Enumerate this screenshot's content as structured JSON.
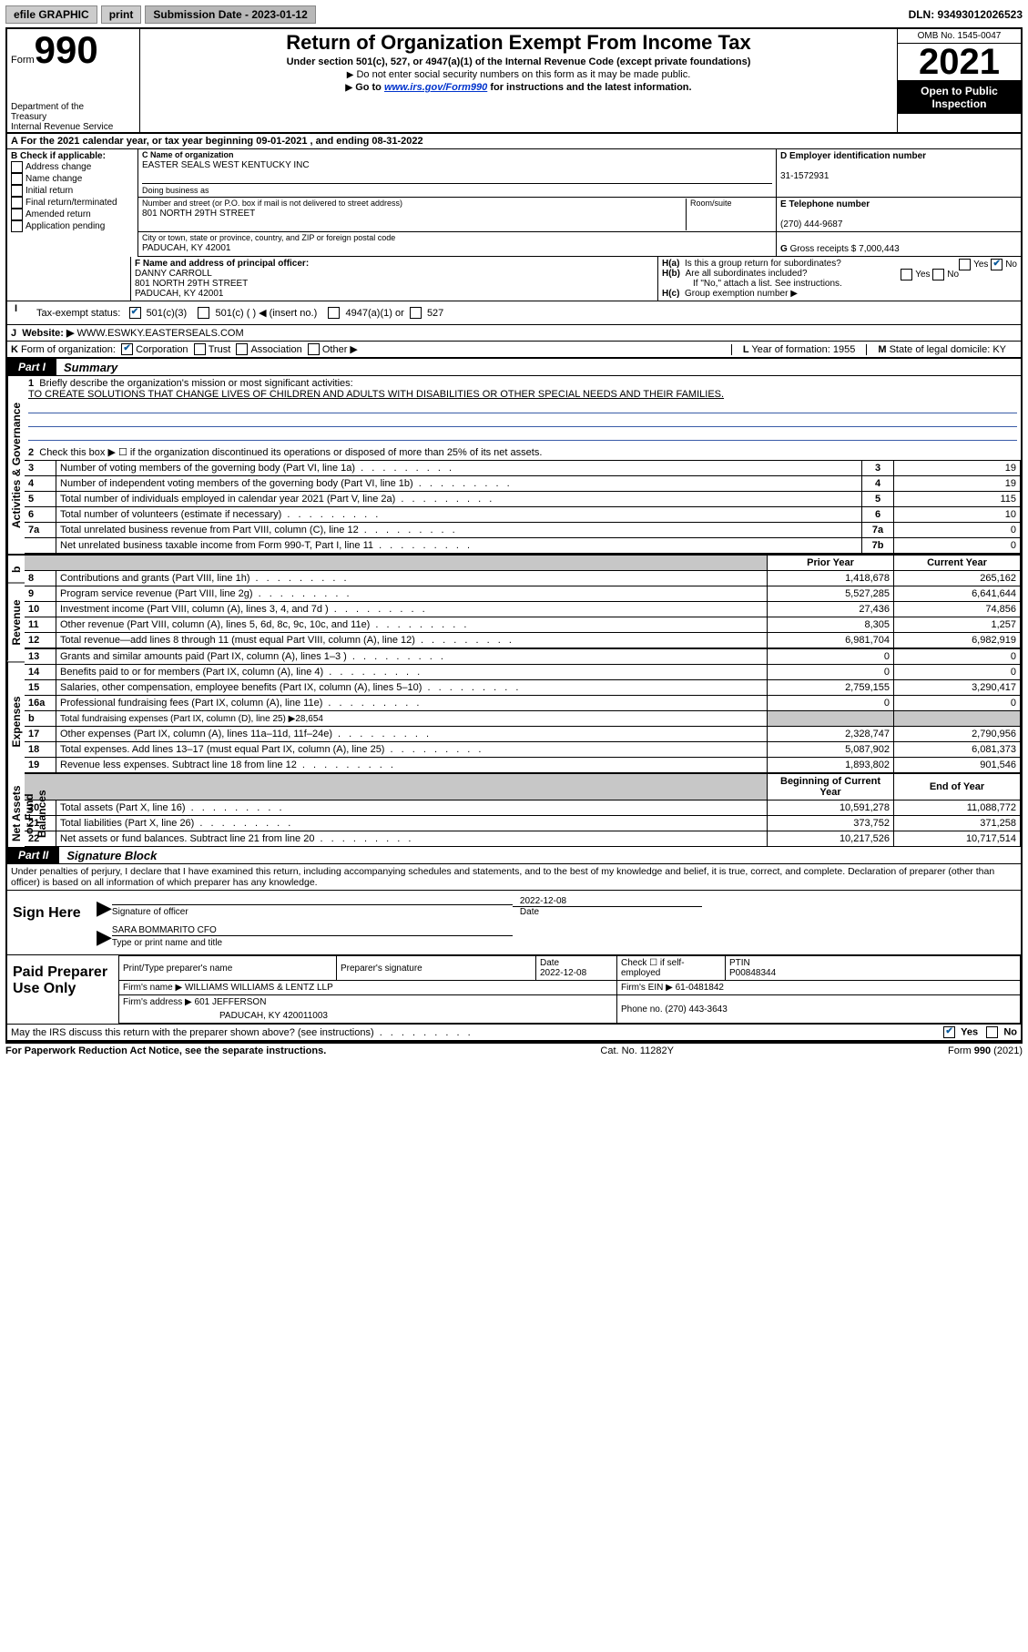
{
  "topbar": {
    "efile": "efile GRAPHIC",
    "print": "print",
    "submission_label": "Submission Date - 2023-01-12",
    "dln": "DLN: 93493012026523"
  },
  "header": {
    "form_prefix": "Form",
    "form_number": "990",
    "dept": "Department of the Treasury\nInternal Revenue Service",
    "title": "Return of Organization Exempt From Income Tax",
    "subtitle": "Under section 501(c), 527, or 4947(a)(1) of the Internal Revenue Code (except private foundations)",
    "note1": "Do not enter social security numbers on this form as it may be made public.",
    "note2_pre": "Go to ",
    "note2_link": "www.irs.gov/Form990",
    "note2_post": " for instructions and the latest information.",
    "omb": "OMB No. 1545-0047",
    "year": "2021",
    "inspection": "Open to Public Inspection"
  },
  "period": {
    "label_a": "A",
    "text": "For the 2021 calendar year, or tax year beginning 09-01-2021   , and ending 08-31-2022"
  },
  "section_b": {
    "label": "B Check if applicable:",
    "items": [
      "Address change",
      "Name change",
      "Initial return",
      "Final return/terminated",
      "Amended return",
      "Application pending"
    ]
  },
  "section_c": {
    "label": "C Name of organization",
    "name": "EASTER SEALS WEST KENTUCKY INC",
    "dba_label": "Doing business as",
    "addr_label": "Number and street (or P.O. box if mail is not delivered to street address)",
    "room_label": "Room/suite",
    "addr": "801 NORTH 29TH STREET",
    "city_label": "City or town, state or province, country, and ZIP or foreign postal code",
    "city": "PADUCAH, KY  42001"
  },
  "section_d": {
    "label": "D Employer identification number",
    "ein": "31-1572931"
  },
  "section_e": {
    "label": "E Telephone number",
    "phone": "(270) 444-9687"
  },
  "section_g": {
    "label": "G",
    "text": "Gross receipts $ 7,000,443"
  },
  "section_f": {
    "label": "F  Name and address of principal officer:",
    "name": "DANNY CARROLL",
    "addr": "801 NORTH 29TH STREET",
    "city": "PADUCAH, KY  42001"
  },
  "section_h": {
    "a_label": "H(a)",
    "a_text": "Is this a group return for subordinates?",
    "yes": "Yes",
    "no": "No",
    "b_label": "H(b)",
    "b_text": "Are all subordinates included?",
    "b_note": "If \"No,\" attach a list. See instructions.",
    "c_label": "H(c)",
    "c_text": "Group exemption number ▶"
  },
  "section_i": {
    "label": "I",
    "text": "Tax-exempt status:",
    "opts": [
      "501(c)(3)",
      "501(c) (  ) ◀ (insert no.)",
      "4947(a)(1) or",
      "527"
    ]
  },
  "section_j": {
    "label": "J",
    "text": "Website: ▶",
    "url": "WWW.ESWKY.EASTERSEALS.COM"
  },
  "section_k": {
    "label": "K",
    "text": "Form of organization:",
    "opts": [
      "Corporation",
      "Trust",
      "Association",
      "Other ▶"
    ]
  },
  "section_l": {
    "label": "L",
    "text": "Year of formation: 1955"
  },
  "section_m": {
    "label": "M",
    "text": "State of legal domicile: KY"
  },
  "part1": {
    "tab": "Part I",
    "title": "Summary",
    "gov_label": "Activities & Governance",
    "rev_label": "Revenue",
    "exp_label": "Expenses",
    "net_label": "Net Assets or Fund Balances",
    "q1_label": "1",
    "q1_text": "Briefly describe the organization's mission or most significant activities:",
    "q1_mission": "TO CREATE SOLUTIONS THAT CHANGE LIVES OF CHILDREN AND ADULTS WITH DISABILITIES OR OTHER SPECIAL NEEDS AND THEIR FAMILIES.",
    "q2_label": "2",
    "q2_text": "Check this box ▶ ☐  if the organization discontinued its operations or disposed of more than 25% of its net assets.",
    "rows_gov": [
      {
        "n": "3",
        "text": "Number of voting members of the governing body (Part VI, line 1a)",
        "box": "3",
        "val": "19"
      },
      {
        "n": "4",
        "text": "Number of independent voting members of the governing body (Part VI, line 1b)",
        "box": "4",
        "val": "19"
      },
      {
        "n": "5",
        "text": "Total number of individuals employed in calendar year 2021 (Part V, line 2a)",
        "box": "5",
        "val": "115"
      },
      {
        "n": "6",
        "text": "Total number of volunteers (estimate if necessary)",
        "box": "6",
        "val": "10"
      },
      {
        "n": "7a",
        "text": "Total unrelated business revenue from Part VIII, column (C), line 12",
        "box": "7a",
        "val": "0"
      },
      {
        "n": "",
        "text": "Net unrelated business taxable income from Form 990-T, Part I, line 11",
        "box": "7b",
        "val": "0"
      }
    ],
    "col_prior": "Prior Year",
    "col_current": "Current Year",
    "col_begin": "Beginning of Current Year",
    "col_end": "End of Year",
    "rows_rev": [
      {
        "n": "8",
        "text": "Contributions and grants (Part VIII, line 1h)",
        "p": "1,418,678",
        "c": "265,162"
      },
      {
        "n": "9",
        "text": "Program service revenue (Part VIII, line 2g)",
        "p": "5,527,285",
        "c": "6,641,644"
      },
      {
        "n": "10",
        "text": "Investment income (Part VIII, column (A), lines 3, 4, and 7d )",
        "p": "27,436",
        "c": "74,856"
      },
      {
        "n": "11",
        "text": "Other revenue (Part VIII, column (A), lines 5, 6d, 8c, 9c, 10c, and 11e)",
        "p": "8,305",
        "c": "1,257"
      },
      {
        "n": "12",
        "text": "Total revenue—add lines 8 through 11 (must equal Part VIII, column (A), line 12)",
        "p": "6,981,704",
        "c": "6,982,919"
      }
    ],
    "rows_exp": [
      {
        "n": "13",
        "text": "Grants and similar amounts paid (Part IX, column (A), lines 1–3 )",
        "p": "0",
        "c": "0"
      },
      {
        "n": "14",
        "text": "Benefits paid to or for members (Part IX, column (A), line 4)",
        "p": "0",
        "c": "0"
      },
      {
        "n": "15",
        "text": "Salaries, other compensation, employee benefits (Part IX, column (A), lines 5–10)",
        "p": "2,759,155",
        "c": "3,290,417"
      },
      {
        "n": "16a",
        "text": "Professional fundraising fees (Part IX, column (A), line 11e)",
        "p": "0",
        "c": "0"
      },
      {
        "n": "b",
        "text": "Total fundraising expenses (Part IX, column (D), line 25) ▶28,654",
        "p": "",
        "c": "",
        "gray": true
      },
      {
        "n": "17",
        "text": "Other expenses (Part IX, column (A), lines 11a–11d, 11f–24e)",
        "p": "2,328,747",
        "c": "2,790,956"
      },
      {
        "n": "18",
        "text": "Total expenses. Add lines 13–17 (must equal Part IX, column (A), line 25)",
        "p": "5,087,902",
        "c": "6,081,373"
      },
      {
        "n": "19",
        "text": "Revenue less expenses. Subtract line 18 from line 12",
        "p": "1,893,802",
        "c": "901,546"
      }
    ],
    "rows_net": [
      {
        "n": "20",
        "text": "Total assets (Part X, line 16)",
        "p": "10,591,278",
        "c": "11,088,772"
      },
      {
        "n": "21",
        "text": "Total liabilities (Part X, line 26)",
        "p": "373,752",
        "c": "371,258"
      },
      {
        "n": "22",
        "text": "Net assets or fund balances. Subtract line 21 from line 20",
        "p": "10,217,526",
        "c": "10,717,514"
      }
    ]
  },
  "part2": {
    "tab": "Part II",
    "title": "Signature Block",
    "declaration": "Under penalties of perjury, I declare that I have examined this return, including accompanying schedules and statements, and to the best of my knowledge and belief, it is true, correct, and complete. Declaration of preparer (other than officer) is based on all information of which preparer has any knowledge."
  },
  "sign": {
    "label": "Sign Here",
    "sig_label": "Signature of officer",
    "date_label": "Date",
    "date": "2022-12-08",
    "name": "SARA BOMMARITO CFO",
    "name_label": "Type or print name and title"
  },
  "preparer": {
    "label": "Paid Preparer Use Only",
    "col1": "Print/Type preparer's name",
    "col2": "Preparer's signature",
    "col3": "Date",
    "date": "2022-12-08",
    "col4_label": "Check ☐ if self-employed",
    "col5_label": "PTIN",
    "ptin": "P00848344",
    "firm_name_label": "Firm's name     ▶",
    "firm_name": "WILLIAMS WILLIAMS & LENTZ LLP",
    "firm_ein_label": "Firm's EIN ▶",
    "firm_ein": "61-0481842",
    "firm_addr_label": "Firm's address ▶",
    "firm_addr1": "601 JEFFERSON",
    "firm_addr2": "PADUCAH, KY  420011003",
    "phone_label": "Phone no.",
    "phone": "(270) 443-3643"
  },
  "discuss": {
    "text": "May the IRS discuss this return with the preparer shown above? (see instructions)",
    "yes": "Yes",
    "no": "No"
  },
  "footer": {
    "left": "For Paperwork Reduction Act Notice, see the separate instructions.",
    "mid": "Cat. No. 11282Y",
    "right": "Form 990 (2021)"
  }
}
